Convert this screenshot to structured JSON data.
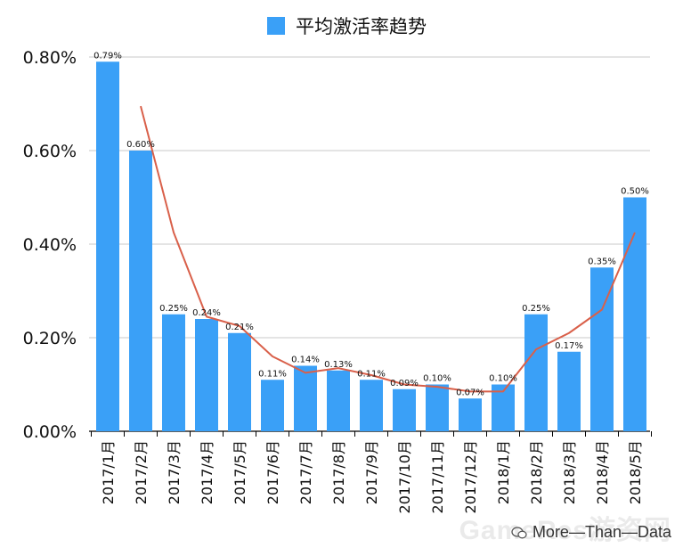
{
  "legend": {
    "label": "平均激活率趋势"
  },
  "watermark": {
    "text": "More—Than—Data",
    "background_text": "GameRes游资网"
  },
  "colors": {
    "bar": "#3aa0f7",
    "trend": "#d9604a",
    "grid": "#c8c8c8",
    "axis": "#000000"
  },
  "chart_data": {
    "type": "bar",
    "title": "",
    "xlabel": "",
    "ylabel": "",
    "ylim": [
      0,
      0.8
    ],
    "yticks": [
      "0.00%",
      "0.20%",
      "0.40%",
      "0.60%",
      "0.80%"
    ],
    "categories": [
      "2017/1月",
      "2017/2月",
      "2017/3月",
      "2017/4月",
      "2017/5月",
      "2017/6月",
      "2017/7月",
      "2017/8月",
      "2017/9月",
      "2017/10月",
      "2017/11月",
      "2017/12月",
      "2018/1月",
      "2018/2月",
      "2018/3月",
      "2018/4月",
      "2018/5月"
    ],
    "series": [
      {
        "name": "平均激活率趋势",
        "values": [
          0.79,
          0.6,
          0.25,
          0.24,
          0.21,
          0.11,
          0.14,
          0.13,
          0.11,
          0.09,
          0.1,
          0.07,
          0.1,
          0.25,
          0.17,
          0.35,
          0.5
        ],
        "labels": [
          "0.79%",
          "0.60%",
          "0.25%",
          "0.24%",
          "0.21%",
          "0.11%",
          "0.14%",
          "0.13%",
          "0.11%",
          "0.09%",
          "0.10%",
          "0.07%",
          "0.10%",
          "0.25%",
          "0.17%",
          "0.35%",
          "0.50%"
        ]
      }
    ],
    "trendline": {
      "type": "moving-average",
      "values": [
        null,
        0.695,
        0.425,
        0.245,
        0.225,
        0.16,
        0.125,
        0.135,
        0.12,
        0.1,
        0.095,
        0.085,
        0.085,
        0.175,
        0.21,
        0.26,
        0.425
      ]
    },
    "grid": true,
    "legend_position": "top"
  }
}
